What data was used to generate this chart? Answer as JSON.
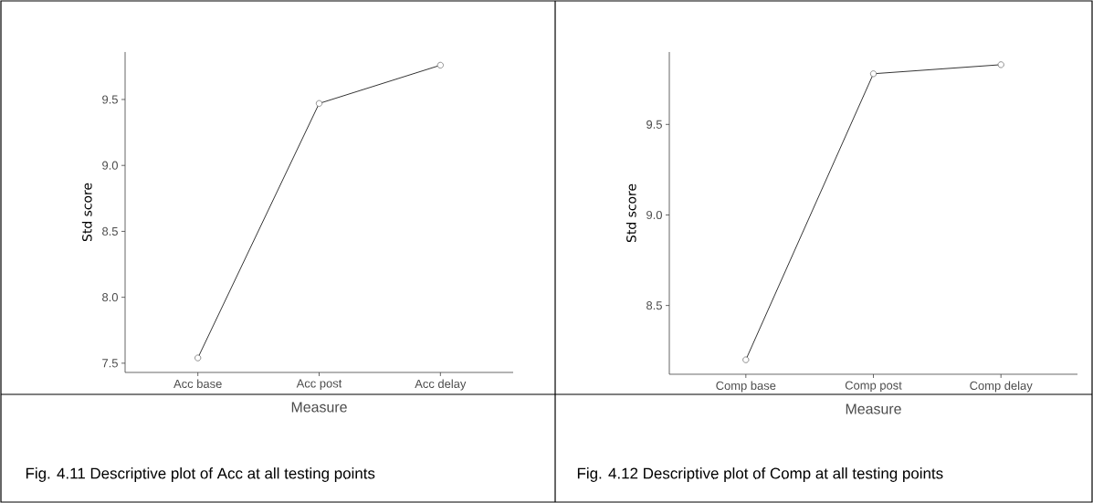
{
  "chart_data": [
    {
      "type": "line",
      "xlabel": "Measure",
      "ylabel": "Std score",
      "categories": [
        "Acc base",
        "Acc post",
        "Acc delay"
      ],
      "series": [
        {
          "color": "#000000",
          "values": [
            7.54,
            9.47,
            9.76
          ]
        }
      ],
      "ylim": [
        7.43,
        9.86
      ],
      "yticks": [
        {
          "value": 7.5,
          "label": "7.5"
        },
        {
          "value": 8,
          "label": "8.0"
        },
        {
          "value": 8.5,
          "label": "8.5"
        },
        {
          "value": 9,
          "label": "9.0"
        },
        {
          "value": 9.5,
          "label": "9.5"
        }
      ],
      "marker": "circle",
      "line_style": "solid",
      "grid": false,
      "annotations": [
        "Fig. 4.11 Descriptive plot of Acc at all testing points"
      ]
    },
    {
      "type": "line",
      "xlabel": "Measure",
      "ylabel": "Std score",
      "categories": [
        "Comp base",
        "Comp post",
        "Comp delay"
      ],
      "series": [
        {
          "color": "#000000",
          "values": [
            8.2,
            9.78,
            9.83
          ]
        }
      ],
      "ylim": [
        8.12,
        9.9
      ],
      "yticks": [
        {
          "value": 8.5,
          "label": "8.5"
        },
        {
          "value": 9,
          "label": "9.0"
        },
        {
          "value": 9.5,
          "label": "9.5"
        }
      ],
      "marker": "circle",
      "line_style": "solid",
      "grid": false,
      "annotations": [
        "Fig. 4.12 Descriptive plot of Comp at all testing points"
      ]
    }
  ]
}
